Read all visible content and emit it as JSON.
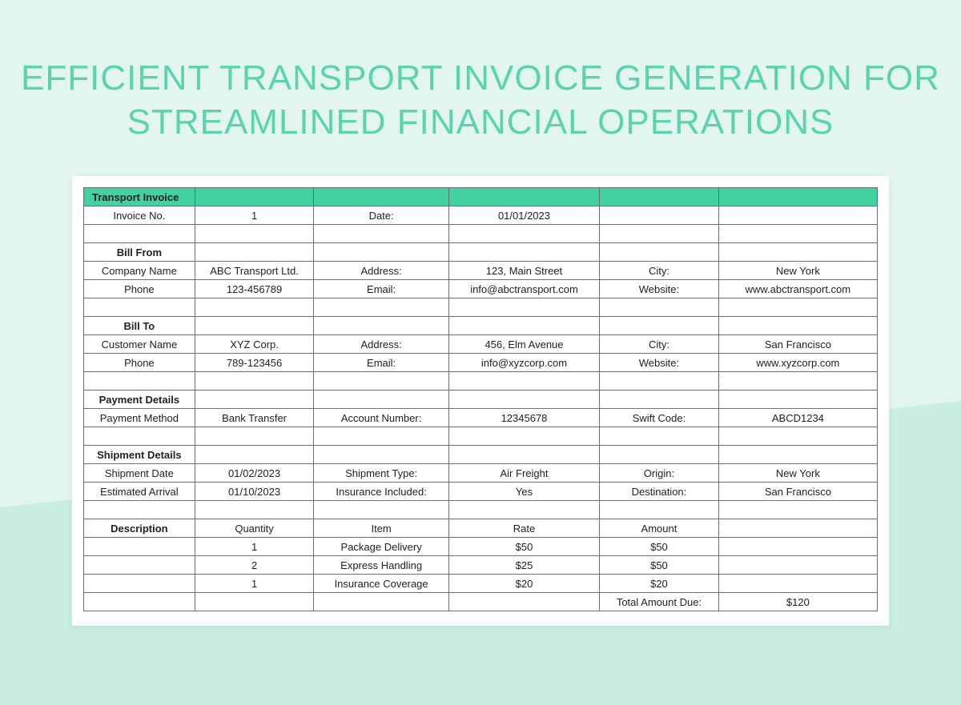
{
  "title": "EFFICIENT TRANSPORT INVOICE GENERATION FOR STREAMLINED FINANCIAL OPERATIONS",
  "colors": {
    "bg_light": "#e2f6ee",
    "bg_accent": "#c9efe2",
    "title_color": "#5bd4aa",
    "header_bg": "#42d2a2",
    "border": "#6b6b6b",
    "card_bg": "#ffffff"
  },
  "typography": {
    "title_fontsize": 44,
    "cell_fontsize": 13
  },
  "table": {
    "header_label": "Transport Invoice",
    "columns": 6,
    "col_widths_pct": [
      14,
      15,
      17,
      19,
      15,
      20
    ],
    "rows": [
      {
        "type": "header",
        "cells": [
          "Transport Invoice",
          "",
          "",
          "",
          "",
          ""
        ]
      },
      {
        "cells": [
          "Invoice No.",
          "1",
          "Date:",
          "01/01/2023",
          "",
          ""
        ]
      },
      {
        "cells": [
          "",
          "",
          "",
          "",
          "",
          ""
        ]
      },
      {
        "cells": [
          "Bill From",
          "",
          "",
          "",
          "",
          ""
        ],
        "bold_first": true
      },
      {
        "cells": [
          "Company Name",
          "ABC Transport Ltd.",
          "Address:",
          "123, Main Street",
          "City:",
          "New York"
        ]
      },
      {
        "cells": [
          "Phone",
          "123-456789",
          "Email:",
          "info@abctransport.com",
          "Website:",
          "www.abctransport.com"
        ]
      },
      {
        "cells": [
          "",
          "",
          "",
          "",
          "",
          ""
        ]
      },
      {
        "cells": [
          "Bill To",
          "",
          "",
          "",
          "",
          ""
        ],
        "bold_first": true
      },
      {
        "cells": [
          "Customer Name",
          "XYZ Corp.",
          "Address:",
          "456, Elm Avenue",
          "City:",
          "San Francisco"
        ]
      },
      {
        "cells": [
          "Phone",
          "789-123456",
          "Email:",
          "info@xyzcorp.com",
          "Website:",
          "www.xyzcorp.com"
        ]
      },
      {
        "cells": [
          "",
          "",
          "",
          "",
          "",
          ""
        ]
      },
      {
        "cells": [
          "Payment Details",
          "",
          "",
          "",
          "",
          ""
        ],
        "bold_first": true
      },
      {
        "cells": [
          "Payment Method",
          "Bank Transfer",
          "Account Number:",
          "12345678",
          "Swift Code:",
          "ABCD1234"
        ]
      },
      {
        "cells": [
          "",
          "",
          "",
          "",
          "",
          ""
        ]
      },
      {
        "cells": [
          "Shipment Details",
          "",
          "",
          "",
          "",
          ""
        ],
        "bold_first": true
      },
      {
        "cells": [
          "Shipment Date",
          "01/02/2023",
          "Shipment Type:",
          "Air Freight",
          "Origin:",
          "New York"
        ]
      },
      {
        "cells": [
          "Estimated Arrival",
          "01/10/2023",
          "Insurance Included:",
          "Yes",
          "Destination:",
          "San Francisco"
        ]
      },
      {
        "cells": [
          "",
          "",
          "",
          "",
          "",
          ""
        ]
      },
      {
        "cells": [
          "Description",
          "Quantity",
          "Item",
          "Rate",
          "Amount",
          ""
        ],
        "bold_first": true
      },
      {
        "cells": [
          "",
          "1",
          "Package Delivery",
          "$50",
          "$50",
          ""
        ]
      },
      {
        "cells": [
          "",
          "2",
          "Express Handling",
          "$25",
          "$50",
          ""
        ]
      },
      {
        "cells": [
          "",
          "1",
          "Insurance Coverage",
          "$20",
          "$20",
          ""
        ]
      },
      {
        "cells": [
          "",
          "",
          "",
          "",
          "Total Amount Due:",
          "$120"
        ]
      }
    ]
  }
}
